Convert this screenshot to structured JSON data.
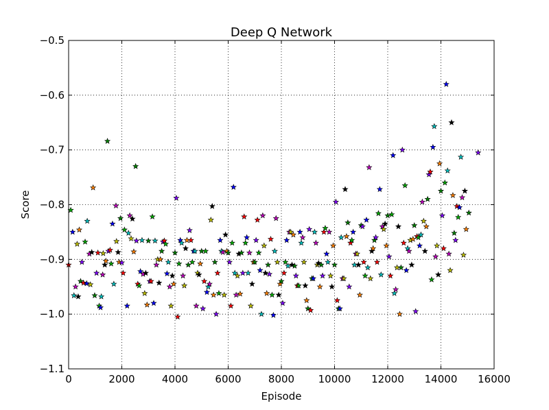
{
  "chart_data": {
    "type": "scatter",
    "title": "Deep Q Network",
    "xlabel": "Episode",
    "ylabel": "Score",
    "xlim": [
      0,
      16000
    ],
    "ylim": [
      -1.1,
      -0.5
    ],
    "xticks": [
      0,
      2000,
      4000,
      6000,
      8000,
      10000,
      12000,
      14000,
      16000
    ],
    "xtick_labels": [
      "0",
      "2000",
      "4000",
      "6000",
      "8000",
      "10000",
      "12000",
      "14000",
      "16000"
    ],
    "yticks": [
      -1.1,
      -1.0,
      -0.9,
      -0.8,
      -0.7,
      -0.6,
      -0.5
    ],
    "ytick_labels": [
      "−1.1",
      "−1.0",
      "−0.9",
      "−0.8",
      "−0.7",
      "−0.6",
      "−0.5"
    ],
    "grid": true,
    "marker": "star",
    "marker_colors": [
      "#ff0000",
      "#00aa00",
      "#0000ff",
      "#00bfbf",
      "#bf00bf",
      "#bfbf00",
      "#000000",
      "#ff8000",
      "#008000",
      "#8000ff"
    ],
    "points": [
      [
        0,
        -0.91
      ],
      [
        80,
        -0.81
      ],
      [
        150,
        -0.85
      ],
      [
        200,
        -0.966
      ],
      [
        260,
        -0.95
      ],
      [
        320,
        -0.872
      ],
      [
        360,
        -0.968
      ],
      [
        400,
        -0.846
      ],
      [
        450,
        -0.94
      ],
      [
        500,
        -0.905
      ],
      [
        560,
        -0.943
      ],
      [
        620,
        -0.868
      ],
      [
        680,
        -0.944
      ],
      [
        700,
        -0.83
      ],
      [
        780,
        -0.89
      ],
      [
        820,
        -0.946
      ],
      [
        870,
        -0.887
      ],
      [
        920,
        -0.769
      ],
      [
        980,
        -0.966
      ],
      [
        1050,
        -0.925
      ],
      [
        1100,
        -0.888
      ],
      [
        1150,
        -0.985
      ],
      [
        1200,
        -0.988
      ],
      [
        1230,
        -0.968
      ],
      [
        1280,
        -0.928
      ],
      [
        1300,
        -0.889
      ],
      [
        1360,
        -0.91
      ],
      [
        1400,
        -0.903
      ],
      [
        1460,
        -0.684
      ],
      [
        1500,
        -0.885
      ],
      [
        1560,
        -0.883
      ],
      [
        1600,
        -0.908
      ],
      [
        1650,
        -0.835
      ],
      [
        1700,
        -0.945
      ],
      [
        1780,
        -0.802
      ],
      [
        1800,
        -0.867
      ],
      [
        1860,
        -0.887
      ],
      [
        1900,
        -0.905
      ],
      [
        1950,
        -0.825
      ],
      [
        2000,
        -0.906
      ],
      [
        2050,
        -0.925
      ],
      [
        2100,
        -0.846
      ],
      [
        2200,
        -0.985
      ],
      [
        2250,
        -0.852
      ],
      [
        2300,
        -0.82
      ],
      [
        2350,
        -0.862
      ],
      [
        2400,
        -0.826
      ],
      [
        2450,
        -0.886
      ],
      [
        2520,
        -0.73
      ],
      [
        2550,
        -0.866
      ],
      [
        2600,
        -0.945
      ],
      [
        2650,
        -0.948
      ],
      [
        2700,
        -0.922
      ],
      [
        2760,
        -0.865
      ],
      [
        2800,
        -0.927
      ],
      [
        2860,
        -0.962
      ],
      [
        2900,
        -0.925
      ],
      [
        2950,
        -0.983
      ],
      [
        3000,
        -0.866
      ],
      [
        3050,
        -0.94
      ],
      [
        3100,
        -0.94
      ],
      [
        3150,
        -0.822
      ],
      [
        3200,
        -0.98
      ],
      [
        3250,
        -0.866
      ],
      [
        3300,
        -0.91
      ],
      [
        3350,
        -0.9
      ],
      [
        3400,
        -0.943
      ],
      [
        3450,
        -0.9
      ],
      [
        3500,
        -0.885
      ],
      [
        3550,
        -0.868
      ],
      [
        3600,
        -0.866
      ],
      [
        3650,
        -0.872
      ],
      [
        3700,
        -0.926
      ],
      [
        3750,
        -0.905
      ],
      [
        3800,
        -0.95
      ],
      [
        3850,
        -0.985
      ],
      [
        3900,
        -0.93
      ],
      [
        3950,
        -0.945
      ],
      [
        4000,
        -0.888
      ],
      [
        4050,
        -0.788
      ],
      [
        4100,
        -1.005
      ],
      [
        4150,
        -0.908
      ],
      [
        4200,
        -0.865
      ],
      [
        4250,
        -0.87
      ],
      [
        4300,
        -0.93
      ],
      [
        4350,
        -0.948
      ],
      [
        4400,
        -0.88
      ],
      [
        4450,
        -0.865
      ],
      [
        4500,
        -0.91
      ],
      [
        4550,
        -0.847
      ],
      [
        4600,
        -0.865
      ],
      [
        4650,
        -0.905
      ],
      [
        4700,
        -0.885
      ],
      [
        4750,
        -0.885
      ],
      [
        4800,
        -0.985
      ],
      [
        4850,
        -0.925
      ],
      [
        4900,
        -0.928
      ],
      [
        4950,
        -0.908
      ],
      [
        5000,
        -0.885
      ],
      [
        5050,
        -0.99
      ],
      [
        5100,
        -0.94
      ],
      [
        5150,
        -0.885
      ],
      [
        5200,
        -0.96
      ],
      [
        5250,
        -0.95
      ],
      [
        5300,
        -0.945
      ],
      [
        5350,
        -0.828
      ],
      [
        5400,
        -0.803
      ],
      [
        5450,
        -0.965
      ],
      [
        5500,
        -0.905
      ],
      [
        5550,
        -1.0
      ],
      [
        5600,
        -0.925
      ],
      [
        5650,
        -0.962
      ],
      [
        5700,
        -0.865
      ],
      [
        5750,
        -0.885
      ],
      [
        5800,
        -0.887
      ],
      [
        5850,
        -0.965
      ],
      [
        5900,
        -0.855
      ],
      [
        5950,
        -0.885
      ],
      [
        6000,
        -0.888
      ],
      [
        6050,
        -0.905
      ],
      [
        6100,
        -0.985
      ],
      [
        6150,
        -0.87
      ],
      [
        6200,
        -0.768
      ],
      [
        6250,
        -0.925
      ],
      [
        6300,
        -0.965
      ],
      [
        6350,
        -0.93
      ],
      [
        6400,
        -0.89
      ],
      [
        6450,
        -0.963
      ],
      [
        6500,
        -0.888
      ],
      [
        6550,
        -0.925
      ],
      [
        6600,
        -0.822
      ],
      [
        6650,
        -0.87
      ],
      [
        6700,
        -0.86
      ],
      [
        6750,
        -0.925
      ],
      [
        6800,
        -0.888
      ],
      [
        6850,
        -0.985
      ],
      [
        6900,
        -0.945
      ],
      [
        6950,
        -0.905
      ],
      [
        7000,
        -0.905
      ],
      [
        7050,
        -0.865
      ],
      [
        7100,
        -0.828
      ],
      [
        7150,
        -0.888
      ],
      [
        7200,
        -0.92
      ],
      [
        7250,
        -1.0
      ],
      [
        7300,
        -0.82
      ],
      [
        7350,
        -0.875
      ],
      [
        7400,
        -0.925
      ],
      [
        7450,
        -0.962
      ],
      [
        7500,
        -0.91
      ],
      [
        7550,
        -0.927
      ],
      [
        7600,
        -0.863
      ],
      [
        7650,
        -0.965
      ],
      [
        7700,
        -1.002
      ],
      [
        7750,
        -0.885
      ],
      [
        7800,
        -0.825
      ],
      [
        7850,
        -0.905
      ],
      [
        7900,
        -0.965
      ],
      [
        7950,
        -0.945
      ],
      [
        8000,
        -0.94
      ],
      [
        8050,
        -0.98
      ],
      [
        8100,
        -0.925
      ],
      [
        8150,
        -0.905
      ],
      [
        8200,
        -0.865
      ],
      [
        8250,
        -0.912
      ],
      [
        8300,
        -0.85
      ],
      [
        8350,
        -0.85
      ],
      [
        8400,
        -0.91
      ],
      [
        8450,
        -0.855
      ],
      [
        8500,
        -0.912
      ],
      [
        8550,
        -0.93
      ],
      [
        8600,
        -0.948
      ],
      [
        8650,
        -0.948
      ],
      [
        8700,
        -0.85
      ],
      [
        8750,
        -0.87
      ],
      [
        8800,
        -0.86
      ],
      [
        8850,
        -0.905
      ],
      [
        8900,
        -0.948
      ],
      [
        8950,
        -0.975
      ],
      [
        9000,
        -0.99
      ],
      [
        9050,
        -0.845
      ],
      [
        9100,
        -0.993
      ],
      [
        9150,
        -0.935
      ],
      [
        9200,
        -0.935
      ],
      [
        9250,
        -0.85
      ],
      [
        9300,
        -0.87
      ],
      [
        9350,
        -0.91
      ],
      [
        9400,
        -0.907
      ],
      [
        9450,
        -0.95
      ],
      [
        9500,
        -0.91
      ],
      [
        9550,
        -0.93
      ],
      [
        9600,
        -0.85
      ],
      [
        9650,
        -0.843
      ],
      [
        9700,
        -0.89
      ],
      [
        9750,
        -0.905
      ],
      [
        9800,
        -0.85
      ],
      [
        9850,
        -0.93
      ],
      [
        9900,
        -0.95
      ],
      [
        9950,
        -0.875
      ],
      [
        10000,
        -0.91
      ],
      [
        10050,
        -0.795
      ],
      [
        10100,
        -0.975
      ],
      [
        10150,
        -0.99
      ],
      [
        10200,
        -0.99
      ],
      [
        10250,
        -0.86
      ],
      [
        10300,
        -0.935
      ],
      [
        10350,
        -0.935
      ],
      [
        10400,
        -0.772
      ],
      [
        10450,
        -0.858
      ],
      [
        10500,
        -0.833
      ],
      [
        10550,
        -0.95
      ],
      [
        10600,
        -0.87
      ],
      [
        10650,
        -0.865
      ],
      [
        10700,
        -0.85
      ],
      [
        10750,
        -0.91
      ],
      [
        10800,
        -0.89
      ],
      [
        10850,
        -0.89
      ],
      [
        10900,
        -0.91
      ],
      [
        10950,
        -0.965
      ],
      [
        11000,
        -0.838
      ],
      [
        11050,
        -0.84
      ],
      [
        11100,
        -0.905
      ],
      [
        11150,
        -0.93
      ],
      [
        11200,
        -0.828
      ],
      [
        11250,
        -0.915
      ],
      [
        11300,
        -0.732
      ],
      [
        11350,
        -0.935
      ],
      [
        11400,
        -0.885
      ],
      [
        11450,
        -0.88
      ],
      [
        11500,
        -0.865
      ],
      [
        11550,
        -0.86
      ],
      [
        11600,
        -0.905
      ],
      [
        11650,
        -0.816
      ],
      [
        11700,
        -0.772
      ],
      [
        11750,
        -0.928
      ],
      [
        11800,
        -0.84
      ],
      [
        11850,
        -0.845
      ],
      [
        11900,
        -0.835
      ],
      [
        11950,
        -0.875
      ],
      [
        12000,
        -0.82
      ],
      [
        12050,
        -0.895
      ],
      [
        12100,
        -0.93
      ],
      [
        12150,
        -0.818
      ],
      [
        12200,
        -0.71
      ],
      [
        12250,
        -0.962
      ],
      [
        12300,
        -0.955
      ],
      [
        12350,
        -0.915
      ],
      [
        12400,
        -0.84
      ],
      [
        12450,
        -1.0
      ],
      [
        12500,
        -0.915
      ],
      [
        12550,
        -0.7
      ],
      [
        12600,
        -0.87
      ],
      [
        12650,
        -0.765
      ],
      [
        12700,
        -0.92
      ],
      [
        12750,
        -0.88
      ],
      [
        12800,
        -0.885
      ],
      [
        12850,
        -0.865
      ],
      [
        12900,
        -0.91
      ],
      [
        12950,
        -0.863
      ],
      [
        13000,
        -0.838
      ],
      [
        13050,
        -0.995
      ],
      [
        13100,
        -0.858
      ],
      [
        13150,
        -0.86
      ],
      [
        13200,
        -0.875
      ],
      [
        13250,
        -0.855
      ],
      [
        13300,
        -0.795
      ],
      [
        13350,
        -0.83
      ],
      [
        13400,
        -0.885
      ],
      [
        13450,
        -0.84
      ],
      [
        13500,
        -0.79
      ],
      [
        13550,
        -0.745
      ],
      [
        13600,
        -0.74
      ],
      [
        13650,
        -0.937
      ],
      [
        13700,
        -0.695
      ],
      [
        13750,
        -0.657
      ],
      [
        13800,
        -0.895
      ],
      [
        13850,
        -0.875
      ],
      [
        13900,
        -0.928
      ],
      [
        13950,
        -0.725
      ],
      [
        14000,
        -0.775
      ],
      [
        14050,
        -0.82
      ],
      [
        14100,
        -0.88
      ],
      [
        14150,
        -0.76
      ],
      [
        14200,
        -0.58
      ],
      [
        14250,
        -0.738
      ],
      [
        14300,
        -0.89
      ],
      [
        14350,
        -0.92
      ],
      [
        14400,
        -0.65
      ],
      [
        14450,
        -0.783
      ],
      [
        14500,
        -0.852
      ],
      [
        14550,
        -0.865
      ],
      [
        14600,
        -0.803
      ],
      [
        14650,
        -0.823
      ],
      [
        14700,
        -0.805
      ],
      [
        14750,
        -0.713
      ],
      [
        14800,
        -0.787
      ],
      [
        14850,
        -0.892
      ],
      [
        14900,
        -0.775
      ],
      [
        14950,
        -0.845
      ],
      [
        15050,
        -0.815
      ],
      [
        15400,
        -0.705
      ]
    ]
  }
}
